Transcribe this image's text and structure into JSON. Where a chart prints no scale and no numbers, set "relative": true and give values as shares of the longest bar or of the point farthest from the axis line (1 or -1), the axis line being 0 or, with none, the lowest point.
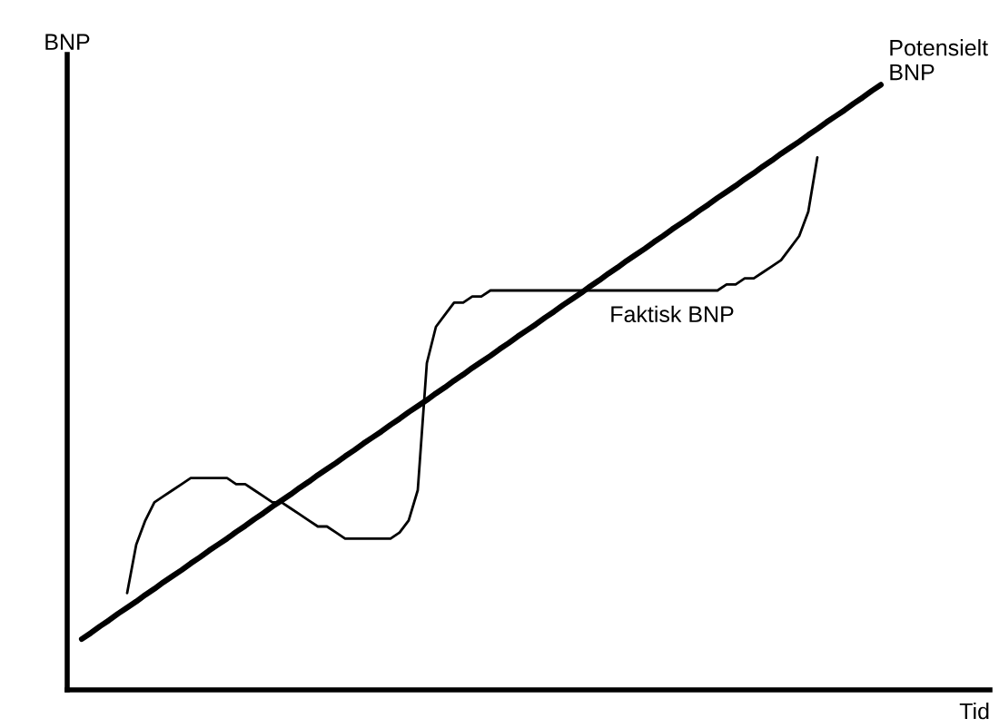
{
  "chart_data": {
    "type": "line",
    "relative": true,
    "xlabel": "Tid",
    "ylabel": "BNP",
    "categories": [
      null,
      null,
      null,
      null,
      null,
      null,
      null,
      null,
      null,
      null,
      null,
      null,
      null,
      null,
      null,
      null,
      null,
      null,
      null,
      null,
      null,
      null,
      null,
      null,
      null,
      null,
      null,
      null,
      null,
      null,
      null,
      null,
      null,
      null,
      null,
      null,
      null,
      null,
      null,
      null,
      null,
      null,
      null,
      null,
      null,
      null,
      null,
      null,
      null,
      null,
      null,
      null,
      null,
      null,
      null,
      null,
      null,
      null,
      null,
      null,
      null,
      null,
      null,
      null,
      null,
      null,
      null,
      null,
      null,
      null,
      null,
      null,
      null,
      null,
      null,
      null,
      null,
      null,
      null,
      null,
      null,
      null,
      null,
      null,
      null,
      null,
      null,
      null,
      null
    ],
    "series": [
      {
        "name": "Potensielt\nBNP",
        "color": "#000000",
        "values": [
          0.084,
          0.094,
          0.105,
          0.115,
          0.126,
          0.136,
          0.146,
          0.157,
          0.167,
          0.178,
          0.188,
          0.198,
          0.209,
          0.219,
          0.23,
          0.24,
          0.25,
          0.261,
          0.271,
          0.282,
          0.292,
          0.303,
          0.313,
          0.323,
          0.334,
          0.344,
          0.355,
          0.365,
          0.375,
          0.386,
          0.396,
          0.407,
          0.417,
          0.427,
          0.438,
          0.448,
          0.459,
          0.469,
          0.479,
          0.49,
          0.5,
          0.511,
          0.521,
          0.532,
          0.542,
          0.552,
          0.563,
          0.573,
          0.584,
          0.594,
          0.604,
          0.615,
          0.625,
          0.636,
          0.646,
          0.656,
          0.667,
          0.677,
          0.688,
          0.698,
          0.709,
          0.719,
          0.729,
          0.74,
          0.75,
          0.761,
          0.771,
          0.781,
          0.792,
          0.802,
          0.813,
          0.823,
          0.833,
          0.844,
          0.854,
          0.865,
          0.875,
          0.886,
          0.896,
          0.906,
          0.917,
          0.927,
          0.938,
          0.948,
          0.958,
          0.969,
          0.979,
          0.99,
          1.0
        ]
      },
      {
        "name": "Faktisk BNP",
        "color": "#000000",
        "values": [
          null,
          null,
          null,
          null,
          null,
          0.16,
          0.24,
          0.28,
          0.31,
          0.32,
          0.33,
          0.34,
          0.35,
          0.35,
          0.35,
          0.35,
          0.35,
          0.34,
          0.34,
          0.33,
          0.32,
          0.31,
          0.31,
          0.3,
          0.29,
          0.28,
          0.27,
          0.27,
          0.26,
          0.25,
          0.25,
          0.25,
          0.25,
          0.25,
          0.25,
          0.26,
          0.28,
          0.33,
          0.54,
          0.6,
          0.62,
          0.64,
          0.64,
          0.65,
          0.65,
          0.66,
          0.66,
          0.66,
          0.66,
          0.66,
          0.66,
          0.66,
          0.66,
          0.66,
          0.66,
          0.66,
          0.66,
          0.66,
          0.66,
          0.66,
          0.66,
          0.66,
          0.66,
          0.66,
          0.66,
          0.66,
          0.66,
          0.66,
          0.66,
          0.66,
          0.66,
          0.67,
          0.67,
          0.68,
          0.68,
          0.69,
          0.7,
          0.71,
          0.73,
          0.75,
          0.79,
          0.88,
          null,
          null,
          null,
          null,
          null,
          null,
          null
        ]
      }
    ]
  }
}
